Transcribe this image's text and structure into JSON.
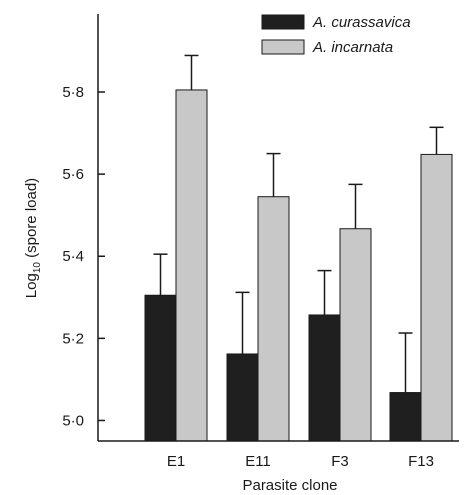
{
  "chart_data": {
    "type": "bar",
    "xlabel": "Parasite clone",
    "ylabel_parts": {
      "base": "Log",
      "sub": "10",
      "rest": " (spore load)"
    },
    "categories": [
      "E1",
      "E11",
      "F3",
      "F13"
    ],
    "ylim": [
      4.95,
      5.99
    ],
    "yticks": [
      5.0,
      5.2,
      5.4,
      5.6,
      5.8
    ],
    "ytick_labels": [
      "5·0",
      "5·2",
      "5·4",
      "5·6",
      "5·8"
    ],
    "series": [
      {
        "name": "A. curassavica",
        "color": "#1f1f1f",
        "values": [
          5.305,
          5.162,
          5.257,
          5.068
        ],
        "errors": [
          0.1,
          0.15,
          0.108,
          0.145
        ]
      },
      {
        "name": "A. incarnata",
        "color": "#c8c8c8",
        "values": [
          5.805,
          5.545,
          5.467,
          5.648
        ],
        "errors": [
          0.084,
          0.105,
          0.108,
          0.066
        ]
      }
    ],
    "legend_position": "top-right",
    "grid": false,
    "error_bars": "upper"
  }
}
